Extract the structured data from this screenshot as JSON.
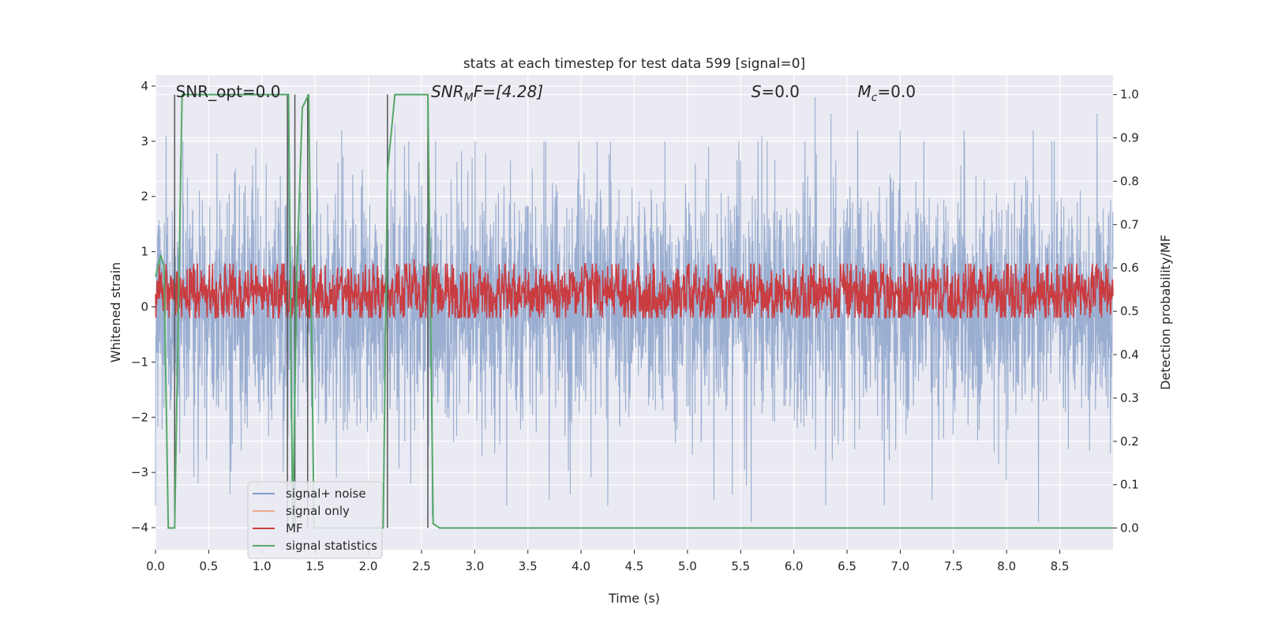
{
  "chart_data": {
    "type": "line",
    "title": "stats at each timestep for test data 599 [signal=0]",
    "xlabel": "Time (s)",
    "ylabel_left": "Whitened strain",
    "ylabel_right": "Detection probability/MF",
    "xlim": [
      0,
      9.0
    ],
    "ylim_left": [
      -4.4,
      4.2
    ],
    "ylim_right": [
      -0.05,
      1.045
    ],
    "x_ticks": [
      0.0,
      0.5,
      1.0,
      1.5,
      2.0,
      2.5,
      3.0,
      3.5,
      4.0,
      4.5,
      5.0,
      5.5,
      6.0,
      6.5,
      7.0,
      7.5,
      8.0,
      8.5
    ],
    "x_tick_labels": [
      "0.0",
      "0.5",
      "1.0",
      "1.5",
      "2.0",
      "2.5",
      "3.0",
      "3.5",
      "4.0",
      "4.5",
      "5.0",
      "5.5",
      "6.0",
      "6.5",
      "7.0",
      "7.5",
      "8.0",
      "8.5"
    ],
    "y_left_ticks": [
      -4,
      -3,
      -2,
      -1,
      0,
      1,
      2,
      3,
      4
    ],
    "y_left_tick_labels": [
      "−4",
      "−3",
      "−2",
      "−1",
      "0",
      "1",
      "2",
      "3",
      "4"
    ],
    "y_right_ticks": [
      0.0,
      0.1,
      0.2,
      0.3,
      0.4,
      0.5,
      0.6,
      0.7,
      0.8,
      0.9,
      1.0
    ],
    "y_right_tick_labels": [
      "0.0",
      "0.1",
      "0.2",
      "0.3",
      "0.4",
      "0.5",
      "0.6",
      "0.7",
      "0.8",
      "0.9",
      "1.0"
    ],
    "grid": true,
    "legend_placement": "lower-left",
    "legend": [
      {
        "label": "signal+ noise",
        "color": "#7f9ac6"
      },
      {
        "label": "signal only",
        "color": "#eea88a"
      },
      {
        "label": "MF",
        "color": "#c93c40"
      },
      {
        "label": "signal statistics",
        "color": "#55a868"
      }
    ],
    "annotations": {
      "snr_opt": "SNR_opt=0.0",
      "snr_mf_base": "SNR",
      "snr_mf_sub": "M",
      "snr_mf_rest": "F=[4.28]",
      "s_base": "S",
      "s_rest": "=0.0",
      "mc_base": "M",
      "mc_sub": "c",
      "mc_rest": "=0.0"
    },
    "series": [
      {
        "name": "signal+ noise",
        "color": "#7f9ac6",
        "description_values": "whitened strain noise, roughly Gaussian around 0 with peaks between about -3.9 and 3.8",
        "noise_sigma": 1.05,
        "peak_max": [
          [
            0.1,
            3.1
          ],
          [
            0.75,
            2.5
          ],
          [
            1.2,
            2.9
          ],
          [
            1.25,
            3.4
          ],
          [
            1.75,
            3.2
          ],
          [
            2.25,
            3.3
          ],
          [
            2.6,
            2.8
          ],
          [
            3.65,
            3.0
          ],
          [
            4.15,
            3.0
          ],
          [
            5.2,
            2.9
          ],
          [
            5.7,
            3.1
          ],
          [
            6.2,
            3.8
          ],
          [
            6.35,
            3.5
          ],
          [
            6.6,
            3.2
          ],
          [
            7.0,
            3.2
          ],
          [
            7.3,
            3.3
          ],
          [
            7.6,
            3.2
          ],
          [
            8.25,
            3.2
          ],
          [
            8.85,
            3.5
          ]
        ],
        "peak_min": [
          [
            0.0,
            -3.6
          ],
          [
            0.4,
            -3.2
          ],
          [
            1.2,
            -3.0
          ],
          [
            1.7,
            -3.1
          ],
          [
            2.6,
            -3.8
          ],
          [
            3.3,
            -3.6
          ],
          [
            3.7,
            -3.5
          ],
          [
            4.25,
            -3.6
          ],
          [
            5.25,
            -3.5
          ],
          [
            5.6,
            -3.9
          ],
          [
            6.3,
            -3.6
          ],
          [
            6.85,
            -3.6
          ],
          [
            7.3,
            -3.5
          ],
          [
            8.3,
            -3.9
          ]
        ]
      },
      {
        "name": "signal only",
        "color": "#eea88a",
        "x": [],
        "y": []
      },
      {
        "name": "MF",
        "color": "#c93c40",
        "axis": "right",
        "mean": 0.54,
        "spread": 0.045,
        "peaks": [
          [
            0.85,
            0.59
          ],
          [
            2.43,
            0.62
          ],
          [
            7.3,
            0.6
          ],
          [
            8.8,
            0.59
          ]
        ]
      },
      {
        "name": "signal statistics",
        "color": "#55a868",
        "axis": "right",
        "x": [
          0.0,
          0.05,
          0.08,
          0.12,
          0.18,
          0.25,
          1.25,
          1.29,
          1.33,
          1.38,
          1.44,
          1.49,
          2.14,
          2.18,
          2.25,
          2.56,
          2.61,
          2.67,
          9.0
        ],
        "y": [
          0.58,
          0.63,
          0.6,
          0.0,
          0.0,
          1.0,
          1.0,
          0.0,
          0.6,
          0.97,
          1.0,
          0.0,
          0.0,
          0.82,
          1.0,
          1.0,
          0.01,
          0.0,
          0.0
        ]
      }
    ],
    "vertical_markers_x": [
      0.18,
      1.24,
      1.31,
      1.43,
      2.18,
      2.56
    ]
  }
}
